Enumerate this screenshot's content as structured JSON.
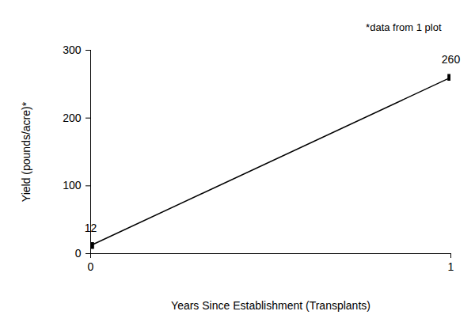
{
  "chart_data": {
    "type": "line",
    "annotation": "*data from 1 plot",
    "x_label": "Years Since Establishment (Transplants)",
    "y_label": "Yield (pounds/acre)*",
    "x": [
      0,
      1
    ],
    "values": [
      12,
      260
    ],
    "color": "#000000",
    "marker": "square",
    "xlim": [
      0,
      1
    ],
    "ylim": [
      0,
      300
    ],
    "xticks": [
      0,
      1
    ],
    "yticks": [
      0,
      100,
      200,
      300
    ],
    "data_labels": true,
    "grid": false
  }
}
